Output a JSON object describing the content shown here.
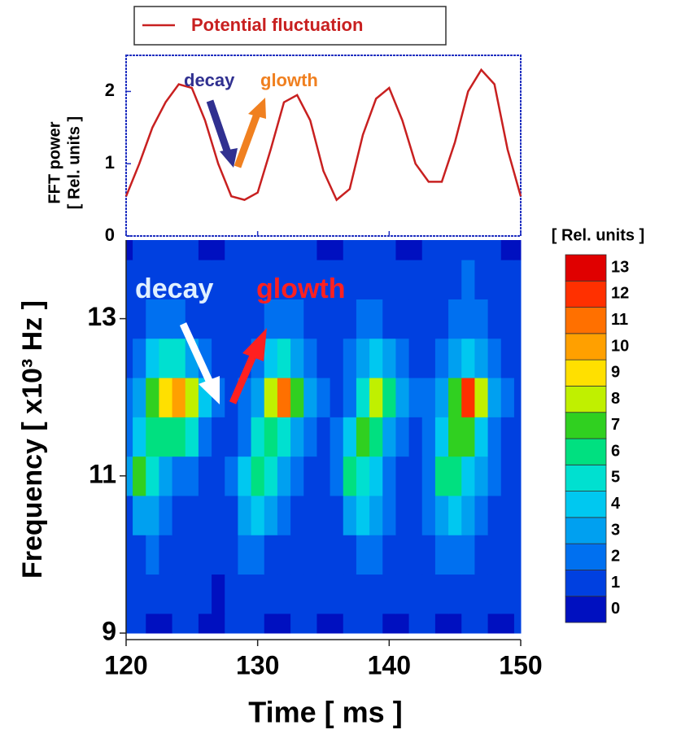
{
  "chart_data": [
    {
      "type": "line",
      "ylabel": [
        "FFT power",
        "[ Rel. units ]"
      ],
      "x": [
        120,
        121,
        122,
        123,
        124,
        125,
        126,
        127,
        128,
        129,
        130,
        131,
        132,
        133,
        134,
        135,
        136,
        137,
        138,
        139,
        140,
        141,
        142,
        143,
        144,
        145,
        146,
        147,
        148,
        149,
        150
      ],
      "series": [
        {
          "name": "Potential fluctuation",
          "color": "#c82020",
          "values": [
            0.55,
            1.0,
            1.5,
            1.85,
            2.1,
            2.05,
            1.6,
            1.0,
            0.55,
            0.5,
            0.6,
            1.2,
            1.85,
            1.95,
            1.6,
            0.9,
            0.5,
            0.65,
            1.4,
            1.9,
            2.05,
            1.6,
            1.0,
            0.75,
            0.75,
            1.3,
            2.0,
            2.3,
            2.1,
            1.2,
            0.55
          ]
        }
      ],
      "xlim": [
        120,
        150
      ],
      "xticks": [
        120,
        130,
        140,
        150
      ],
      "ylim": [
        0,
        2.5
      ],
      "yticks": [
        0,
        1,
        2
      ],
      "annotations": [
        {
          "text": "decay",
          "color": "#303090"
        },
        {
          "text": "glowth",
          "color": "#f08020"
        }
      ]
    },
    {
      "type": "contour",
      "xlabel": "Time [ ms ]",
      "ylabel": "Frequency [ x10³ Hz ]",
      "x": [
        120,
        121,
        122,
        123,
        124,
        125,
        126,
        127,
        128,
        129,
        130,
        131,
        132,
        133,
        134,
        135,
        136,
        137,
        138,
        139,
        140,
        141,
        142,
        143,
        144,
        145,
        146,
        147,
        148,
        149,
        150
      ],
      "y": [
        9,
        9.5,
        10,
        10.5,
        11,
        11.5,
        12,
        12.5,
        13,
        13.5,
        14
      ],
      "z": [
        [
          1,
          1,
          0.5,
          0.5,
          1,
          1,
          0.5,
          0.5,
          1,
          1,
          1,
          0.5,
          0.5,
          1,
          1,
          0.5,
          0.5,
          1,
          1,
          1,
          0.5,
          0.5,
          1,
          1,
          0.5,
          0.5,
          1,
          1,
          0.5,
          0.5,
          1
        ],
        [
          1,
          1,
          1,
          1,
          1.5,
          1,
          1,
          0.5,
          1,
          1.5,
          1.5,
          1,
          1,
          1.5,
          1,
          1,
          1,
          1,
          1.5,
          1.5,
          1,
          1,
          1,
          1.5,
          1,
          1,
          1.5,
          1.5,
          1,
          1,
          1
        ],
        [
          1,
          1.5,
          2,
          1.5,
          1.5,
          1,
          1,
          1,
          1.5,
          2,
          2,
          1.5,
          1,
          1.5,
          1,
          1,
          1,
          1.5,
          2,
          2,
          1.5,
          1,
          1,
          1.5,
          2,
          2,
          2,
          1.5,
          1,
          1,
          1
        ],
        [
          1.5,
          3,
          3,
          2,
          1.5,
          1.5,
          1,
          1,
          1.5,
          3,
          4,
          3,
          2,
          1.5,
          1,
          1,
          1.5,
          3,
          4,
          3,
          2,
          1.5,
          1.5,
          2,
          3.5,
          4,
          3,
          2,
          1.5,
          1,
          1
        ],
        [
          3,
          7,
          5,
          3.5,
          2.5,
          2,
          1.5,
          1.5,
          2,
          4,
          6.5,
          5,
          3,
          2,
          1.5,
          1.5,
          2,
          6.5,
          5.5,
          4,
          2.5,
          1.5,
          1.5,
          2.5,
          6.5,
          6,
          4,
          3,
          2,
          1.5,
          1
        ],
        [
          2.5,
          4.5,
          6,
          6.5,
          6.5,
          5,
          2.5,
          1.5,
          1.5,
          2.5,
          5,
          6.5,
          5,
          3,
          2,
          1.5,
          2,
          4,
          7,
          6,
          3.5,
          2,
          1.5,
          2,
          4,
          7,
          7,
          4,
          2.5,
          1.5,
          1
        ],
        [
          2,
          3.5,
          7,
          9,
          10,
          8,
          4,
          2,
          1.5,
          2,
          3.5,
          8,
          11,
          7,
          3,
          2,
          1.5,
          2.5,
          5,
          8,
          6,
          3,
          2,
          2,
          3,
          7,
          12,
          8,
          3.5,
          2,
          1
        ],
        [
          1.5,
          2.5,
          4,
          5,
          5,
          3.5,
          2,
          1.5,
          1.5,
          1.5,
          2.5,
          4,
          5,
          3.5,
          2,
          1.5,
          1.5,
          2,
          3,
          4,
          3,
          2,
          1.5,
          1.5,
          2,
          3,
          4,
          3,
          2,
          1.5,
          1
        ],
        [
          1,
          1.5,
          2,
          2,
          2,
          1.5,
          1.5,
          1,
          1,
          1,
          1.5,
          2,
          2.5,
          2,
          1.5,
          1,
          1,
          1.5,
          2,
          2,
          1.5,
          1.5,
          1,
          1,
          1.5,
          2,
          2.5,
          2,
          1.5,
          1,
          1
        ],
        [
          1,
          1,
          1.5,
          1.5,
          1,
          1,
          1,
          1,
          1,
          1,
          1,
          1.5,
          1.5,
          1,
          1,
          1,
          1,
          1,
          1.5,
          1.5,
          1,
          1,
          1,
          1,
          1,
          1.5,
          2,
          1.5,
          1,
          1,
          1
        ],
        [
          0.5,
          1,
          1,
          1,
          1,
          1,
          0.5,
          0.5,
          1,
          1,
          1,
          1,
          1,
          1,
          1,
          0.5,
          0.5,
          1,
          1,
          1,
          1,
          0.5,
          0.5,
          1,
          1,
          1,
          1.5,
          1,
          1,
          0.5,
          0.5
        ]
      ],
      "levels": [
        0,
        1,
        2,
        3,
        4,
        5,
        6,
        7,
        8,
        9,
        10,
        11,
        12,
        13
      ],
      "colors": [
        "#0010c0",
        "#0040e0",
        "#0070f0",
        "#00a0f0",
        "#00c8f0",
        "#00e0d0",
        "#00e080",
        "#30d020",
        "#c0f000",
        "#ffe000",
        "#ffa000",
        "#ff7000",
        "#ff3000",
        "#e00000"
      ],
      "colorbar_label": "[ Rel. units ]",
      "xlim": [
        120,
        150
      ],
      "xticks": [
        120,
        130,
        140,
        150
      ],
      "ylim": [
        9,
        14
      ],
      "yticks": [
        9,
        11,
        13
      ],
      "annotations": [
        {
          "text": "decay",
          "color": "#e0f0ff"
        },
        {
          "text": "glowth",
          "color": "#ff2020"
        }
      ]
    }
  ]
}
